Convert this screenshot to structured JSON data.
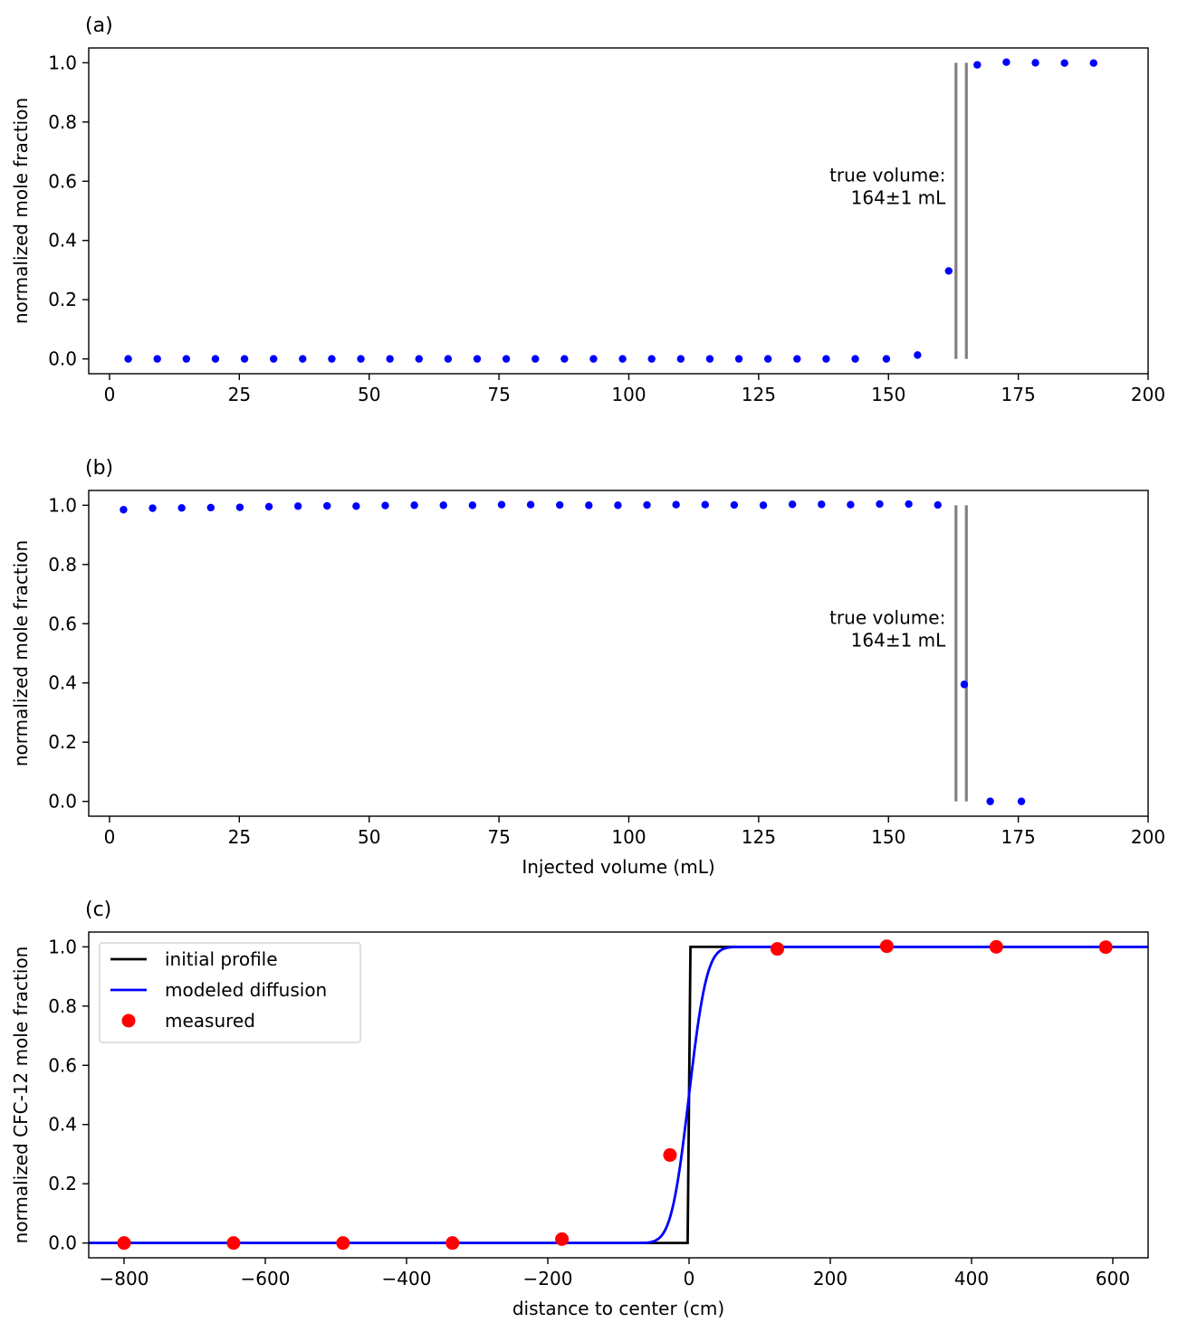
{
  "chart_data": [
    {
      "type": "scatter",
      "panel_label": "(a)",
      "xlabel": "",
      "ylabel": "normalized mole fraction",
      "xlim": [
        -4,
        200
      ],
      "ylim": [
        -0.05,
        1.05
      ],
      "xticks": [
        0,
        25,
        50,
        75,
        100,
        125,
        150,
        175,
        200
      ],
      "yticks": [
        0.0,
        0.2,
        0.4,
        0.6,
        0.8,
        1.0
      ],
      "xtick_labels": [
        "0",
        "25",
        "50",
        "75",
        "100",
        "125",
        "150",
        "175",
        "200"
      ],
      "ytick_labels": [
        "0.0",
        "0.2",
        "0.4",
        "0.6",
        "0.8",
        "1.0"
      ],
      "grid": false,
      "annotation": {
        "lines": [
          "true volume:",
          "164±1 mL"
        ],
        "x": 161,
        "y": 0.6
      },
      "vlines": [
        163,
        165
      ],
      "vline_range": [
        0,
        1.0
      ],
      "vline_color": "#808080",
      "series": [
        {
          "color": "#0000ff",
          "x": [
            3.6,
            9.2,
            14.8,
            20.4,
            26.0,
            31.6,
            37.2,
            42.8,
            48.4,
            54.0,
            59.6,
            65.2,
            70.8,
            76.4,
            82.0,
            87.6,
            93.2,
            98.8,
            104.4,
            110.0,
            115.6,
            121.2,
            126.8,
            132.4,
            138.0,
            143.6,
            149.6,
            155.6,
            161.6,
            167.1,
            172.7,
            178.3,
            183.9,
            189.5
          ],
          "y": [
            0,
            0,
            0,
            0,
            0,
            0,
            0,
            0,
            0,
            0,
            0,
            0,
            0,
            0,
            0,
            0,
            0,
            0,
            0,
            0,
            0,
            0,
            0,
            0,
            0,
            0,
            0,
            0.013,
            0.297,
            0.993,
            1.002,
            1.0,
            0.999,
            0.999
          ]
        }
      ]
    },
    {
      "type": "scatter",
      "panel_label": "(b)",
      "xlabel": "Injected volume (mL)",
      "ylabel": "normalized mole fraction",
      "xlim": [
        -4,
        200
      ],
      "ylim": [
        -0.05,
        1.05
      ],
      "xticks": [
        0,
        25,
        50,
        75,
        100,
        125,
        150,
        175,
        200
      ],
      "yticks": [
        0.0,
        0.2,
        0.4,
        0.6,
        0.8,
        1.0
      ],
      "xtick_labels": [
        "0",
        "25",
        "50",
        "75",
        "100",
        "125",
        "150",
        "175",
        "200"
      ],
      "ytick_labels": [
        "0.0",
        "0.2",
        "0.4",
        "0.6",
        "0.8",
        "1.0"
      ],
      "grid": false,
      "annotation": {
        "lines": [
          "true volume:",
          "164±1 mL"
        ],
        "x": 161,
        "y": 0.6
      },
      "vlines": [
        163,
        165
      ],
      "vline_range": [
        0,
        1.0
      ],
      "vline_color": "#808080",
      "series": [
        {
          "color": "#0000ff",
          "x": [
            2.7,
            8.3,
            13.9,
            19.5,
            25.1,
            30.7,
            36.3,
            41.9,
            47.5,
            53.1,
            58.7,
            64.3,
            69.9,
            75.5,
            81.1,
            86.7,
            92.3,
            97.9,
            103.5,
            109.1,
            114.7,
            120.3,
            125.9,
            131.5,
            137.1,
            142.7,
            148.3,
            153.9,
            159.5,
            164.6,
            169.6,
            175.6
          ],
          "y": [
            0.985,
            0.99,
            0.991,
            0.992,
            0.993,
            0.995,
            0.997,
            0.998,
            0.997,
            0.999,
            1.0,
            1.0,
            1.0,
            1.002,
            1.002,
            1.001,
            1.0,
            1.0,
            1.001,
            1.002,
            1.002,
            1.001,
            1.0,
            1.003,
            1.003,
            1.002,
            1.004,
            1.004,
            1.001,
            0.395,
            0.0,
            0.0
          ]
        }
      ]
    },
    {
      "type": "line",
      "panel_label": "(c)",
      "xlabel": "distance to center (cm)",
      "ylabel": "normalized CFC-12 mole fraction",
      "xlim": [
        -850,
        650
      ],
      "ylim": [
        -0.05,
        1.05
      ],
      "xticks": [
        -800,
        -600,
        -400,
        -200,
        0,
        200,
        400,
        600
      ],
      "yticks": [
        0.0,
        0.2,
        0.4,
        0.6,
        0.8,
        1.0
      ],
      "xtick_labels": [
        "−800",
        "−600",
        "−400",
        "−200",
        "0",
        "200",
        "400",
        "600"
      ],
      "ytick_labels": [
        "0.0",
        "0.2",
        "0.4",
        "0.6",
        "0.8",
        "1.0"
      ],
      "grid": false,
      "legend_position": "top-left",
      "series": [
        {
          "name": "initial profile",
          "kind": "line",
          "color": "#000000",
          "x": [
            -850,
            -2,
            2,
            650
          ],
          "y": [
            0,
            0,
            1,
            1
          ]
        },
        {
          "name": "modeled diffusion",
          "kind": "erf",
          "color": "#0000ff",
          "center": 0,
          "width": 28
        },
        {
          "name": "measured",
          "kind": "scatter",
          "color": "#ff0000",
          "x": [
            -800,
            -645,
            -490,
            -335,
            -180,
            -27,
            125,
            280,
            435,
            590
          ],
          "y": [
            0.0,
            0.0,
            0.0,
            0.0,
            0.013,
            0.297,
            0.993,
            1.002,
            1.0,
            0.999
          ]
        }
      ]
    }
  ]
}
